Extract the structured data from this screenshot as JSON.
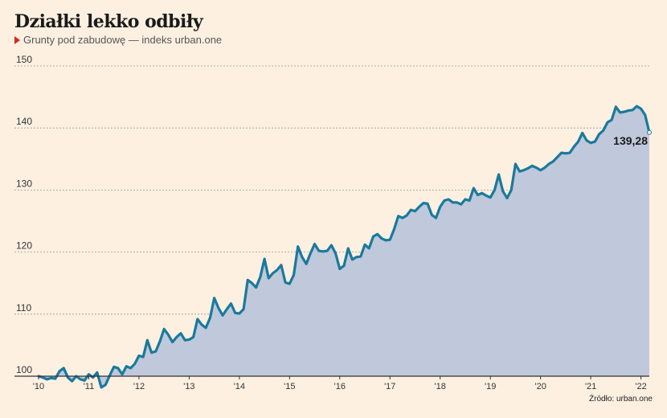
{
  "title": "Działki lekko odbiły",
  "subtitle": "Grunty pod zabudowę — indeks urban.one",
  "source": "Źródło: urban.one",
  "colors": {
    "line": "#1a7a9c",
    "area": "#c0c8db",
    "marker": "#d32a1e",
    "grid": "#9a9a9a",
    "background": "#fdf0e1"
  },
  "chart_data": {
    "type": "area",
    "title": "Działki lekko odbiły",
    "xlabel": "",
    "ylabel": "",
    "ylim": [
      100,
      150
    ],
    "grid": true,
    "y_ticks": [
      100,
      110,
      120,
      130,
      140,
      150
    ],
    "x_ticks": [
      "'10",
      "'11",
      "'12",
      "'13",
      "'14",
      "'15",
      "'16",
      "'17",
      "'18",
      "'19",
      "'20",
      "'21",
      "'22"
    ],
    "x_start": "2010-01",
    "frequency": "monthly",
    "last_value_label": "139,28",
    "values": [
      100.0,
      99.8,
      99.5,
      99.7,
      99.6,
      100.8,
      101.3,
      99.8,
      99.2,
      100.0,
      99.5,
      99.3,
      100.3,
      99.8,
      100.6,
      98.2,
      98.6,
      100.1,
      101.5,
      101.3,
      100.3,
      101.6,
      101.3,
      102.0,
      103.3,
      103.1,
      105.8,
      103.8,
      104.0,
      105.6,
      107.6,
      106.7,
      105.5,
      106.3,
      106.9,
      105.8,
      105.9,
      106.3,
      109.2,
      108.3,
      107.8,
      109.4,
      112.6,
      111.0,
      109.8,
      110.8,
      111.7,
      110.2,
      110.1,
      110.8,
      115.5,
      115.0,
      114.3,
      116.0,
      118.9,
      115.8,
      116.6,
      117.1,
      117.9,
      115.1,
      114.9,
      116.3,
      120.9,
      119.2,
      118.1,
      119.8,
      121.3,
      120.2,
      120.1,
      120.2,
      121.1,
      119.8,
      117.3,
      117.8,
      120.6,
      118.8,
      119.2,
      119.3,
      121.2,
      120.6,
      122.5,
      122.9,
      122.2,
      121.9,
      122.0,
      123.7,
      125.8,
      125.5,
      125.9,
      126.8,
      126.6,
      127.3,
      127.9,
      127.8,
      126.0,
      125.5,
      127.3,
      128.3,
      128.5,
      128.0,
      128.0,
      127.7,
      128.5,
      128.3,
      130.3,
      129.2,
      129.5,
      129.1,
      128.8,
      130.0,
      132.5,
      129.8,
      128.7,
      130.0,
      134.2,
      133.0,
      133.2,
      133.5,
      133.9,
      133.6,
      133.2,
      133.6,
      134.2,
      134.6,
      135.3,
      136.0,
      135.9,
      136.0,
      137.0,
      137.8,
      139.2,
      138.0,
      137.6,
      137.8,
      139.0,
      139.6,
      140.9,
      141.3,
      143.4,
      142.5,
      142.6,
      142.8,
      142.9,
      143.5,
      143.1,
      142.1,
      139.28
    ]
  }
}
